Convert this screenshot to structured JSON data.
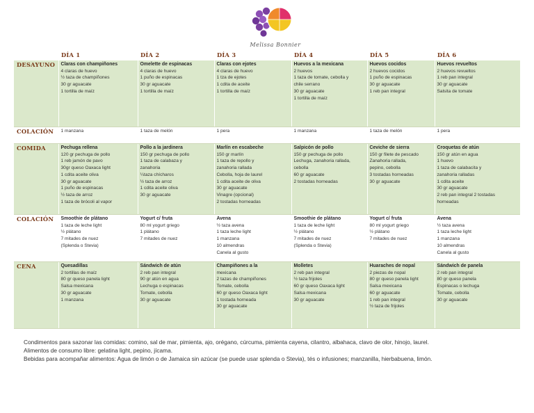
{
  "brand": "Melissa Bonnier",
  "days": [
    "DÍA 1",
    "DÍA 2",
    "DÍA 3",
    "DÍA 4",
    "DÍA 5",
    "DÍA 6"
  ],
  "meals": [
    {
      "label": "DESAYUNO",
      "kind": "meal",
      "height": 94,
      "cells": [
        {
          "title": "Claras con champiñones",
          "lines": [
            "4 claras de huevo",
            "½ taza de champiñones",
            "30 gr aguacate",
            "1 tortilla de maíz"
          ]
        },
        {
          "title": "Omelette de espinacas",
          "lines": [
            "4 claras de huevo",
            "1 puño de espinacas",
            "30 gr aguacate",
            "1 tortilla de maíz"
          ]
        },
        {
          "title": "Claras con ejotes",
          "lines": [
            "4 claras de huevo",
            "1 tza de ejotes",
            "1 cdita de aceite",
            "1 tortilla de maíz"
          ]
        },
        {
          "title": "Huevos a la mexicana",
          "lines": [
            " 2 huevos",
            "1 taza de tomate, cebolla y",
            "chile serrano",
            "30 gr aguacate",
            "1 tortilla de maíz"
          ]
        },
        {
          "title": "Huevos cocidos",
          "lines": [
            "2 huevos cocidos",
            "1 puño de espinacas",
            "30 gr aguacate",
            "1 reb pan integral"
          ]
        },
        {
          "title": "Huevos revueltos",
          "lines": [
            "2 huevos revueltos",
            "1 reb pan integral",
            "30 gr aguacate",
            "Salsita de tomate"
          ]
        }
      ]
    },
    {
      "label": "COLACIÓN",
      "kind": "snack",
      "height": 22,
      "cells": [
        {
          "title": "",
          "lines": [
            "1 manzana"
          ]
        },
        {
          "title": "",
          "lines": [
            "1 taza de melón"
          ]
        },
        {
          "title": "",
          "lines": [
            "1 pera"
          ]
        },
        {
          "title": "",
          "lines": [
            "1 manzana"
          ]
        },
        {
          "title": "",
          "lines": [
            "1 taza de melón"
          ]
        },
        {
          "title": "",
          "lines": [
            "1 pera"
          ]
        }
      ]
    },
    {
      "label": "COMIDA",
      "kind": "meal",
      "height": 100,
      "cells": [
        {
          "title": "Pechuga rellena",
          "lines": [
            "120 gr pechuga de pollo",
            "1 reb jamón de pavo",
            "30gr queso Oaxaca light",
            "1 cdita aceite oliva",
            "30 gr aguacate",
            "1 puño de espinacas",
            "½ taza de arroz",
            "1 taza de brócoli al vapor"
          ]
        },
        {
          "title": "Pollo a la jardinera",
          "lines": [
            "150 gr pechuga de pollo",
            "1 taza de calabaza y",
            "zanahoria",
            "¼taza chícharos",
            "½ taza de arroz",
            "1 cdita aceite oliva",
            "30 gr aguacate"
          ]
        },
        {
          "title": "Marlín en escabeche",
          "lines": [
            "150 gr marlín",
            "1 taza de repollo y",
            "zanahoria rallada",
            "Cebolla, hoja de laurel",
            "1 cdita aceite de oliva",
            "30 gr aguacate",
            "Vinagre (opcional)",
            "2 tostadas horneadas"
          ]
        },
        {
          "title": "Salpicón de pollo",
          "lines": [
            "150 gr pechuga de pollo",
            "Lechuga, zanahoria rallada,",
            "cebolla",
            "60 gr aguacate",
            "2 tostadas horneadas"
          ]
        },
        {
          "title": "Ceviche de sierra",
          "lines": [
            "150 gr filete de pescado",
            "Zanahoria rallada,",
            "pepino, cebolla",
            "3 tostadas horneadas",
            "30 gr aguacate"
          ]
        },
        {
          "title": "Croquetas de atún",
          "lines": [
            "150 gr atún en agua",
            "1 huevo",
            "1 taza de calabacita y",
            "zanahoria ralladas",
            "1 cdita aceite",
            "30 gr aguacate",
            "2 reb pan integral 2 tostadas",
            "horneadas"
          ]
        }
      ]
    },
    {
      "label": "COLACIÓN",
      "kind": "snack",
      "height": 66,
      "cells": [
        {
          "title": "Smoothie de plátano",
          "lines": [
            "1 taza de leche light",
            "½ plátano",
            "7 mitades de nuez",
            "(Splenda o Stevia)"
          ]
        },
        {
          "title": "Yogurt c/ fruta",
          "lines": [
            " 80 ml yogurt griego",
            "1 plátano",
            "7 mitades de nuez"
          ]
        },
        {
          "title": "Avena",
          "lines": [
            "½ taza avena",
            "1 taza leche light",
            "1 manzana",
            "10 almendras",
            "Canela al gusto"
          ]
        },
        {
          "title": "Smoothie de plátano",
          "lines": [
            "1 taza de leche light",
            "½ plátano",
            "7 mitades de nuez",
            "(Splenda o Stevia)"
          ]
        },
        {
          "title": "Yogurt c/ fruta",
          "lines": [
            " 80 ml yogurt griego",
            "½ plátano",
            "7 mitades de nuez"
          ]
        },
        {
          "title": "Avena",
          "lines": [
            "½ taza avena",
            "1 taza leche light",
            "1 manzana",
            "10 almendras",
            "Canela al gusto"
          ]
        }
      ]
    },
    {
      "label": "CENA",
      "kind": "meal",
      "height": 94,
      "cells": [
        {
          "title": "Quesadillas",
          "lines": [
            "2 tortillas de maíz",
            "80 gr queso panela light",
            "Salsa mexicana",
            "30 gr aguacate",
            "1 manzana"
          ]
        },
        {
          "title": "Sándwich de atún",
          "lines": [
            "2 reb pan integral",
            "90 gr atún en agua",
            "Lechuga o espinacas",
            "Tomate, cebolla",
            "30 gr aguacate"
          ]
        },
        {
          "title": "Champiñones a la",
          "lines": [
            "mexicana",
            "2 tazas de champiñones",
            "Tomate, cebolla",
            "60 gr queso Oaxaca light",
            "1 tostada horneada",
            "30 gr aguacate"
          ]
        },
        {
          "title": "Molletes",
          "lines": [
            "2 reb pan integral",
            "½ taza frijoles",
            "60 gr queso Oaxaca light",
            "Salsa mexicana",
            "30 gr aguacate"
          ]
        },
        {
          "title": "Huaraches de nopal",
          "lines": [
            "2 piezas de nopal",
            "80 gr queso panela light",
            "Salsa mexicana",
            "60 gr aguacate",
            "1 reb pan integral",
            "½ taza de frijoles"
          ]
        },
        {
          "title": "Sándwich de panela",
          "lines": [
            "2 reb pan integral",
            "80 gr queso panela",
            "Espinacas o lechuga",
            "Tomate, cebolla",
            "30 gr aguacate"
          ]
        }
      ]
    }
  ],
  "notes": [
    "Condimentos para sazonar las comidas: comino, sal de mar, pimienta, ajo, orégano, cúrcuma, pimienta cayena, cilantro, albahaca, clavo de olor, hinojo, laurel.",
    "Alimentos de consumo libre: gelatina light, pepino, jícama.",
    "Bebidas para acompañar alimentos: Agua de limón o de Jamaica sin azúcar (se puede usar splenda o Stevia), tés o infusiones; manzanilla, hierbabuena, limón."
  ],
  "colors": {
    "meal_row": "#dbe8cb",
    "header_text": "#7a3a1a",
    "logo_purple": "#7b3fa0",
    "logo_yellow": "#f3c623",
    "logo_pink": "#e0306a"
  }
}
